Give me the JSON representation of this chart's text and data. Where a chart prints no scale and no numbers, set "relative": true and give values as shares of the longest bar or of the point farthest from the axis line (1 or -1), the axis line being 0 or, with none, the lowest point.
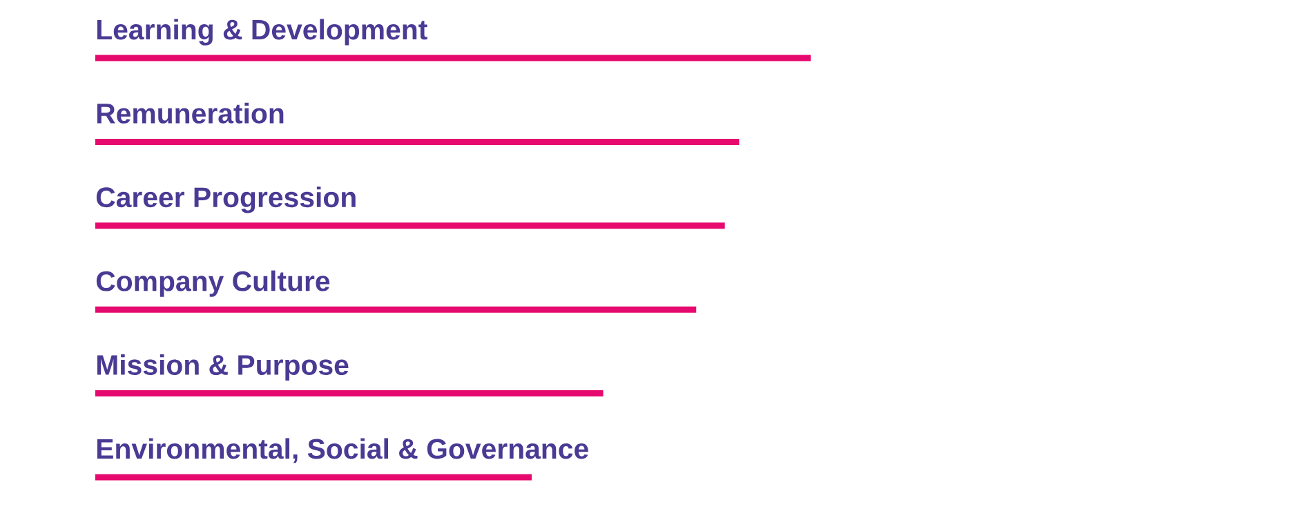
{
  "chart_data": {
    "type": "bar",
    "orientation": "horizontal",
    "relative": true,
    "categories": [
      "Learning & Development",
      "Remuneration",
      "Career Progression",
      "Company Culture",
      "Mission & Purpose",
      "Environmental, Social & Governance"
    ],
    "values": [
      1,
      0.9,
      0.88,
      0.84,
      0.71,
      0.61
    ],
    "color": "#e6096e"
  }
}
